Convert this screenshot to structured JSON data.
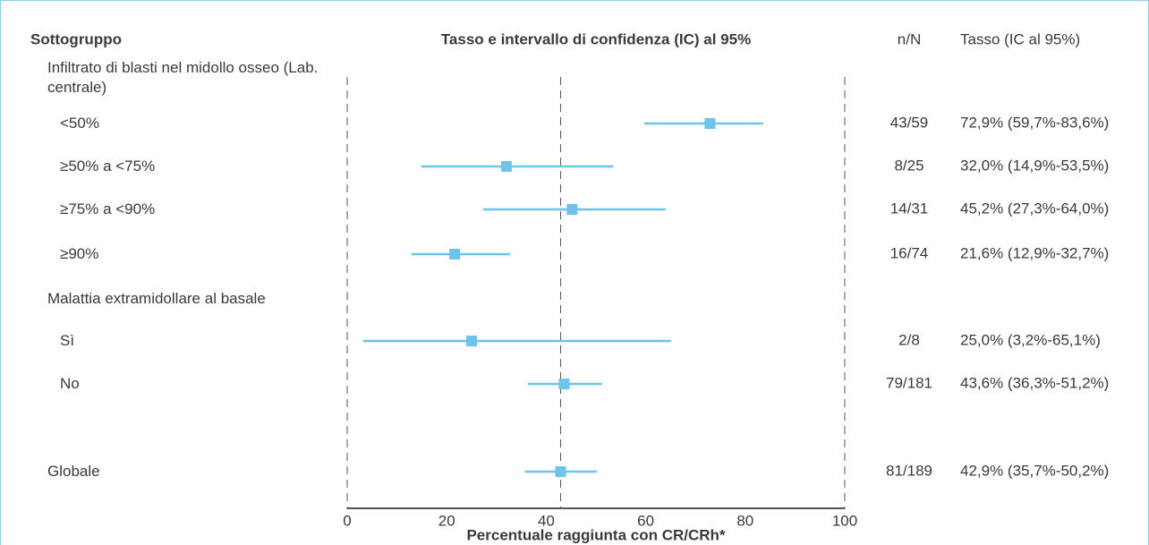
{
  "chart_data": {
    "type": "forest",
    "title": "Tasso e intervallo di confidenza (IC) al 95%",
    "column_headers": {
      "subgroup": "Sottogruppo",
      "n": "n/N",
      "rate": "Tasso (IC al 95%)"
    },
    "x_label": "Percentuale raggiunta con CR/CRh*",
    "xlim": [
      0,
      100
    ],
    "xticks": [
      0,
      20,
      40,
      60,
      80,
      100
    ],
    "color": "#6ec3ea",
    "rows": [
      {
        "label": "Infiltrato di blasti nel midollo osseo (Lab. centrale)"
      },
      {
        "label": "<50%",
        "n": "43/59",
        "value": 72.9,
        "ci": [
          59.7,
          83.6
        ],
        "value_label": "72,9% (59,7%-83,6%)"
      },
      {
        "label": "≥50% a <75%",
        "n": "8/25",
        "value": 32.0,
        "ci": [
          14.9,
          53.5
        ],
        "value_label": "32,0% (14,9%-53,5%)"
      },
      {
        "label": "≥75% a <90%",
        "n": "14/31",
        "value": 45.2,
        "ci": [
          27.3,
          64.0
        ],
        "value_label": "45,2% (27,3%-64,0%)"
      },
      {
        "label": "≥90%",
        "n": "16/74",
        "value": 21.6,
        "ci": [
          12.9,
          32.7
        ],
        "value_label": "21,6% (12,9%-32,7%)"
      },
      {
        "label": "Malattia extramidollare al basale"
      },
      {
        "label": "Sì",
        "n": "2/8",
        "value": 25.0,
        "ci": [
          3.2,
          65.1
        ],
        "value_label": "25,0% (3,2%-65,1%)"
      },
      {
        "label": "No",
        "n": "79/181",
        "value": 43.6,
        "ci": [
          36.3,
          51.2
        ],
        "value_label": "43,6% (36,3%-51,2%)"
      },
      {
        "label": "Globale",
        "n": "81/189",
        "value": 42.9,
        "ci": [
          35.7,
          50.2
        ],
        "value_label": "42,9% (35,7%-50,2%)"
      }
    ]
  }
}
